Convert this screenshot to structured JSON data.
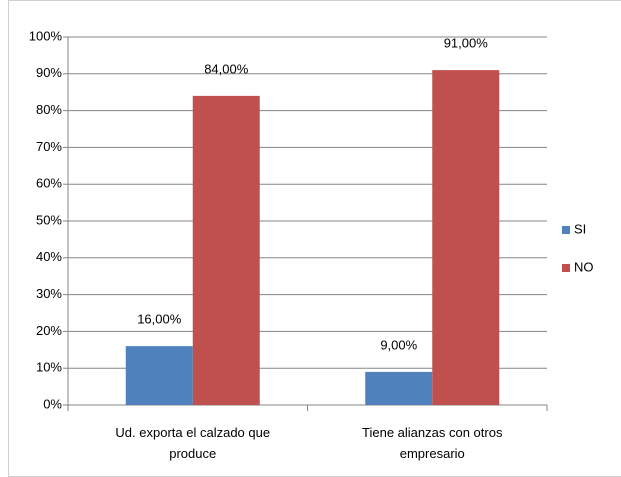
{
  "chart_data": {
    "type": "bar",
    "categories": [
      "Ud. exporta el calzado que produce",
      "Tiene alianzas con otros empresario"
    ],
    "series": [
      {
        "name": "SI",
        "color": "#4f81bd",
        "values": [
          16,
          9
        ],
        "value_labels": [
          "16,00%",
          "9,00%"
        ]
      },
      {
        "name": "NO",
        "color": "#c0504d",
        "values": [
          84,
          91
        ],
        "value_labels": [
          "84,00%",
          "91,00%"
        ]
      }
    ],
    "ylim": [
      0,
      100
    ],
    "yticks": [
      {
        "value": 0,
        "label": "0%"
      },
      {
        "value": 10,
        "label": "10%"
      },
      {
        "value": 20,
        "label": "20%"
      },
      {
        "value": 30,
        "label": "30%"
      },
      {
        "value": 40,
        "label": "40%"
      },
      {
        "value": 50,
        "label": "50%"
      },
      {
        "value": 60,
        "label": "60%"
      },
      {
        "value": 70,
        "label": "70%"
      },
      {
        "value": 80,
        "label": "80%"
      },
      {
        "value": 90,
        "label": "90%"
      },
      {
        "value": 100,
        "label": "100%"
      }
    ],
    "grid": true,
    "legend": "right"
  }
}
